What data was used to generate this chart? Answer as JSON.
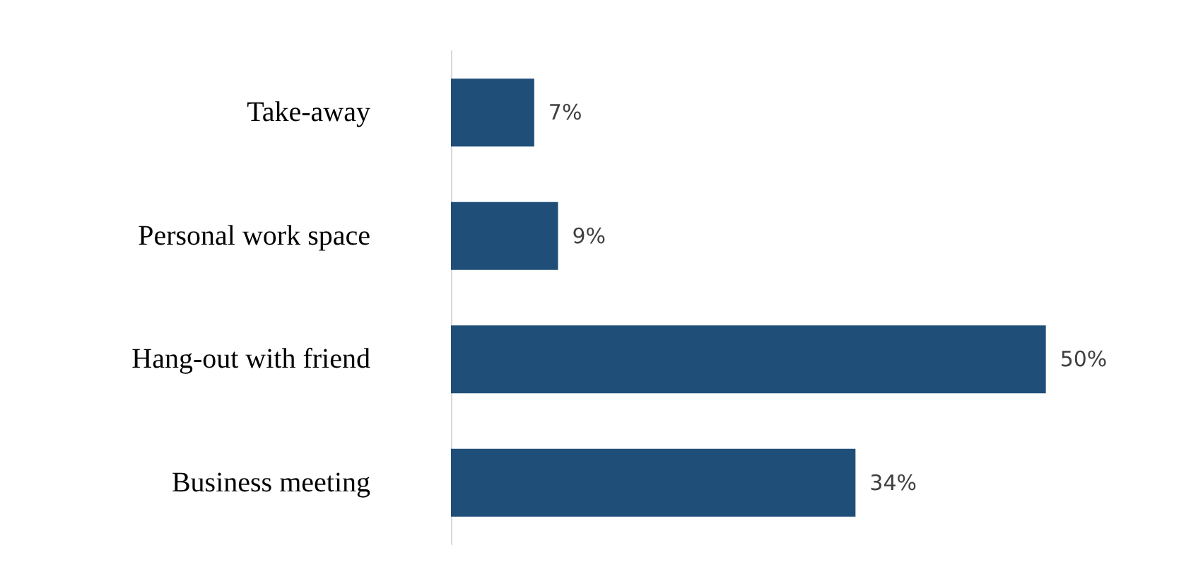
{
  "chart_data": {
    "type": "bar",
    "orientation": "horizontal",
    "categories": [
      "Take-away",
      "Personal work space",
      "Hang-out with friend",
      "Business meeting"
    ],
    "values": [
      7,
      9,
      50,
      34
    ],
    "value_labels": [
      "7%",
      "9%",
      "50%",
      "34%"
    ],
    "color": "#1f4e79"
  }
}
